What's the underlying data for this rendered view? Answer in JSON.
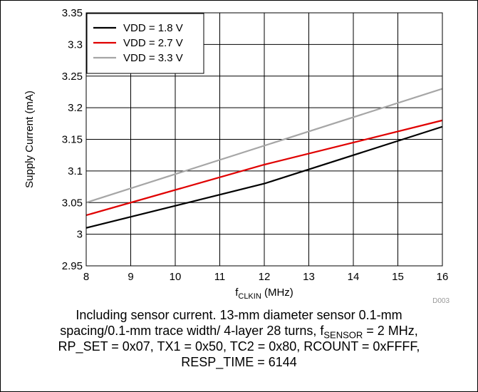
{
  "chart_data": {
    "type": "line",
    "xlabel_main": "f",
    "xlabel_sub": "CLKIN",
    "xlabel_unit": " (MHz)",
    "ylabel": "Supply Current (mA)",
    "xlim": [
      8,
      16
    ],
    "ylim": [
      2.95,
      3.35
    ],
    "xticks": [
      "8",
      "9",
      "10",
      "11",
      "12",
      "13",
      "14",
      "15",
      "16"
    ],
    "yticks": [
      "2.95",
      "3",
      "3.05",
      "3.1",
      "3.15",
      "3.2",
      "3.25",
      "3.3",
      "3.35"
    ],
    "grid": true,
    "legend_position": "top-left",
    "series": [
      {
        "name": "VDD = 1.8 V",
        "color": "#000000",
        "x": [
          8,
          12,
          16
        ],
        "y": [
          3.01,
          3.08,
          3.17
        ]
      },
      {
        "name": "VDD = 2.7 V",
        "color": "#e00000",
        "x": [
          8,
          12,
          16
        ],
        "y": [
          3.03,
          3.11,
          3.18
        ]
      },
      {
        "name": "VDD = 3.3 V",
        "color": "#a6a6a6",
        "x": [
          8,
          16
        ],
        "y": [
          3.05,
          3.23
        ]
      }
    ]
  },
  "figure_id": "D003",
  "caption": {
    "line1": "Including sensor current. 13-mm diameter sensor 0.1-mm",
    "line2_before": "spacing/0.1-mm trace width/ 4-layer 28 turns, f",
    "line2_sub": "SENSOR",
    "line2_after": " = 2 MHz,",
    "line3": "RP_SET = 0x07, TX1 = 0x50, TC2 = 0x80, RCOUNT = 0xFFFF,",
    "line4": "RESP_TIME = 6144"
  }
}
